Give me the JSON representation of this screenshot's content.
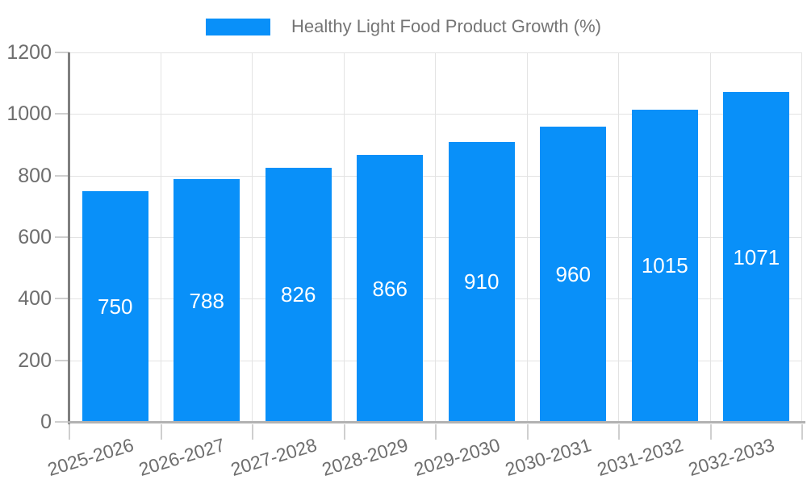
{
  "legend": {
    "label": "Healthy Light Food Product Growth (%)"
  },
  "chart_data": {
    "type": "bar",
    "title": "Healthy Light Food Product Growth (%)",
    "categories": [
      "2025-2026",
      "2026-2027",
      "2027-2028",
      "2028-2029",
      "2029-2030",
      "2030-2031",
      "2031-2032",
      "2032-2033"
    ],
    "values": [
      750,
      788,
      826,
      866,
      910,
      960,
      1015,
      1071
    ],
    "xlabel": "",
    "ylabel": "",
    "ylim": [
      0,
      1200
    ],
    "yticks": [
      0,
      200,
      400,
      600,
      800,
      1000,
      1200
    ],
    "grid": true,
    "legend_position": "top-center",
    "colors": {
      "bar": "#0990f9",
      "value_label": "#ffffff",
      "axis_text": "#6e6e6e",
      "legend_text": "#757575",
      "gridline": "#e3e3e3",
      "tick": "#cfcfcf",
      "y_axis_line": "#7f7f7f",
      "x_axis_line": "#b2b2b2"
    }
  }
}
